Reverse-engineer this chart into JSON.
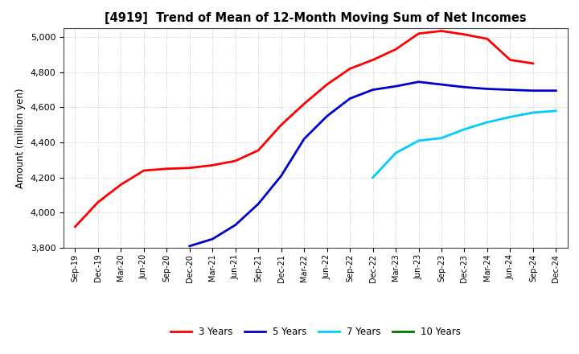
{
  "title": "[4919]  Trend of Mean of 12-Month Moving Sum of Net Incomes",
  "ylabel": "Amount (million yen)",
  "ylim": [
    3800,
    5050
  ],
  "yticks": [
    3800,
    4000,
    4200,
    4400,
    4600,
    4800,
    5000
  ],
  "background_color": "#ffffff",
  "grid_color": "#bbbbbb",
  "x_labels": [
    "Sep-19",
    "Dec-19",
    "Mar-20",
    "Jun-20",
    "Sep-20",
    "Dec-20",
    "Mar-21",
    "Jun-21",
    "Sep-21",
    "Dec-21",
    "Mar-22",
    "Jun-22",
    "Sep-22",
    "Dec-22",
    "Mar-23",
    "Jun-23",
    "Sep-23",
    "Dec-23",
    "Mar-24",
    "Jun-24",
    "Sep-24",
    "Dec-24"
  ],
  "series": {
    "3 Years": {
      "color": "#ff0000",
      "data_x": [
        0,
        1,
        2,
        3,
        4,
        5,
        6,
        7,
        8,
        9,
        10,
        11,
        12,
        13,
        14,
        15,
        16,
        17,
        18,
        19,
        20
      ],
      "data_y": [
        3920,
        4060,
        4160,
        4240,
        4250,
        4255,
        4270,
        4295,
        4355,
        4500,
        4620,
        4730,
        4820,
        4870,
        4930,
        5020,
        5035,
        5015,
        4990,
        4870,
        4850
      ]
    },
    "5 Years": {
      "color": "#0000cc",
      "data_x": [
        5,
        6,
        7,
        8,
        9,
        10,
        11,
        12,
        13,
        14,
        15,
        16,
        17,
        18,
        19,
        20,
        21
      ],
      "data_y": [
        3810,
        3850,
        3930,
        4050,
        4210,
        4420,
        4550,
        4650,
        4700,
        4720,
        4745,
        4730,
        4715,
        4705,
        4700,
        4695,
        4695
      ]
    },
    "7 Years": {
      "color": "#00ccff",
      "data_x": [
        13,
        14,
        15,
        16,
        17,
        18,
        19,
        20,
        21
      ],
      "data_y": [
        4200,
        4340,
        4410,
        4425,
        4475,
        4515,
        4545,
        4570,
        4580
      ]
    },
    "10 Years": {
      "color": "#007700",
      "data_x": [],
      "data_y": []
    }
  },
  "legend_order": [
    "3 Years",
    "5 Years",
    "7 Years",
    "10 Years"
  ],
  "linewidth": 2.0
}
